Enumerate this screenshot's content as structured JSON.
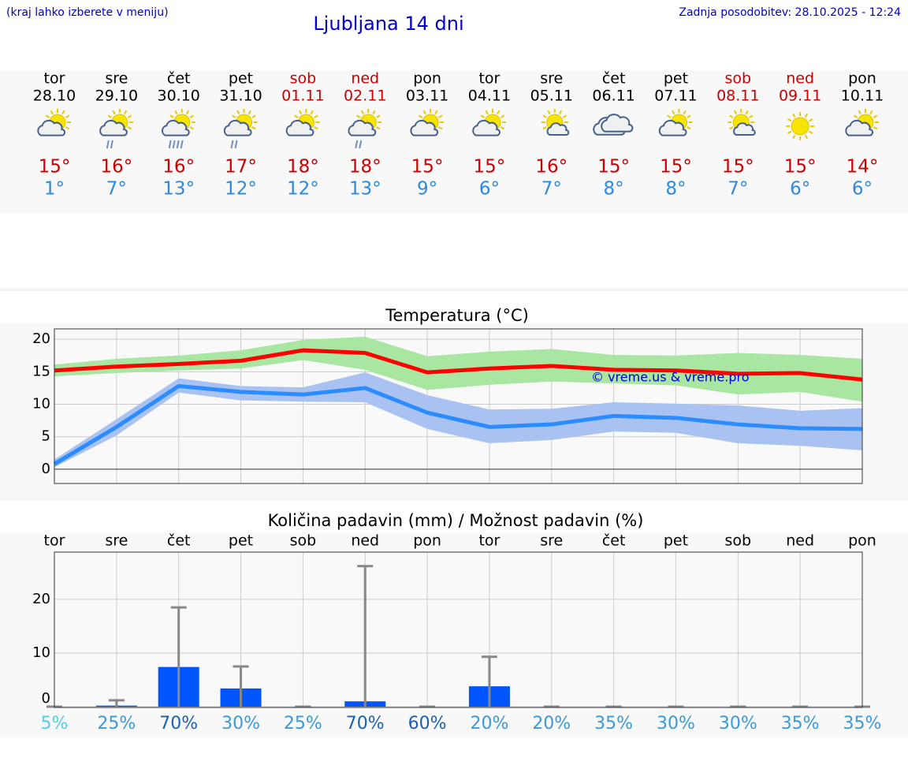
{
  "header": {
    "note": "(kraj lahko izberete v meniju)",
    "title": "Ljubljana 14 dni",
    "updated": "Zadnja posodobitev: 28.10.2025 - 12:24"
  },
  "days": [
    {
      "weekday": "tor",
      "date": "28.10",
      "high": "15°",
      "low": "1°",
      "weekend": false,
      "icon": "sun-cloud"
    },
    {
      "weekday": "sre",
      "date": "29.10",
      "high": "16°",
      "low": "7°",
      "weekend": false,
      "icon": "sun-cloud-rain"
    },
    {
      "weekday": "čet",
      "date": "30.10",
      "high": "16°",
      "low": "13°",
      "weekend": false,
      "icon": "sun-cloud-heavy-rain"
    },
    {
      "weekday": "pet",
      "date": "31.10",
      "high": "17°",
      "low": "12°",
      "weekend": false,
      "icon": "sun-cloud-rain"
    },
    {
      "weekday": "sob",
      "date": "01.11",
      "high": "18°",
      "low": "12°",
      "weekend": true,
      "icon": "sun-cloud"
    },
    {
      "weekday": "ned",
      "date": "02.11",
      "high": "18°",
      "low": "13°",
      "weekend": true,
      "icon": "sun-cloud-rain"
    },
    {
      "weekday": "pon",
      "date": "03.11",
      "high": "15°",
      "low": "9°",
      "weekend": false,
      "icon": "sun-cloud"
    },
    {
      "weekday": "tor",
      "date": "04.11",
      "high": "15°",
      "low": "6°",
      "weekend": false,
      "icon": "sun-cloud"
    },
    {
      "weekday": "sre",
      "date": "05.11",
      "high": "16°",
      "low": "7°",
      "weekend": false,
      "icon": "sun-small-cloud"
    },
    {
      "weekday": "čet",
      "date": "06.11",
      "high": "15°",
      "low": "8°",
      "weekend": false,
      "icon": "cloudy"
    },
    {
      "weekday": "pet",
      "date": "07.11",
      "high": "15°",
      "low": "8°",
      "weekend": false,
      "icon": "sun-cloud"
    },
    {
      "weekday": "sob",
      "date": "08.11",
      "high": "15°",
      "low": "7°",
      "weekend": true,
      "icon": "sun-small-cloud"
    },
    {
      "weekday": "ned",
      "date": "09.11",
      "high": "15°",
      "low": "6°",
      "weekend": true,
      "icon": "sun"
    },
    {
      "weekday": "pon",
      "date": "10.11",
      "high": "14°",
      "low": "6°",
      "weekend": false,
      "icon": "sun-cloud"
    }
  ],
  "chart_data": [
    {
      "type": "line",
      "title": "Temperatura (°C)",
      "annotation": "© vreme.us & vreme.pro",
      "ylim": [
        -2.2,
        21.6
      ],
      "yticks": [
        0,
        5,
        10,
        15,
        20
      ],
      "grid": true,
      "bands": [
        {
          "color": "#a8e6a2",
          "upper": [
            16.1,
            17.0,
            17.5,
            18.3,
            19.9,
            20.4,
            17.4,
            18.1,
            18.5,
            17.6,
            17.5,
            17.9,
            17.6,
            17.0
          ],
          "lower": [
            14.3,
            14.8,
            15.2,
            15.5,
            16.8,
            15.3,
            12.2,
            13.0,
            13.5,
            13.2,
            12.9,
            11.5,
            11.9,
            10.4
          ]
        },
        {
          "color": "#aac2f2",
          "upper": [
            1.5,
            7.7,
            14.0,
            12.8,
            12.6,
            14.9,
            11.4,
            9.2,
            9.3,
            10.3,
            10.1,
            9.8,
            9.0,
            9.4
          ],
          "lower": [
            0.3,
            5.2,
            11.8,
            10.6,
            10.4,
            10.3,
            6.2,
            4.0,
            4.5,
            5.8,
            5.6,
            4.0,
            3.6,
            2.9
          ]
        }
      ],
      "series": [
        {
          "color": "#ff0000",
          "values": [
            15.2,
            15.8,
            16.2,
            16.7,
            18.3,
            17.9,
            14.9,
            15.5,
            15.9,
            15.3,
            15.2,
            14.7,
            14.8,
            13.8
          ]
        },
        {
          "color": "#2a8cff",
          "values": [
            0.8,
            6.5,
            12.8,
            11.9,
            11.5,
            12.5,
            8.7,
            6.5,
            6.9,
            8.2,
            7.9,
            6.9,
            6.3,
            6.2
          ]
        }
      ]
    },
    {
      "type": "bar",
      "title": "Količina padavin (mm) / Možnost padavin (%)",
      "categories": [
        "tor",
        "sre",
        "čet",
        "pet",
        "sob",
        "ned",
        "pon",
        "tor",
        "sre",
        "čet",
        "pet",
        "sob",
        "ned",
        "pon"
      ],
      "values": [
        0,
        0.2,
        7.4,
        3.4,
        0,
        1.0,
        0,
        3.8,
        0,
        0,
        0,
        0,
        0,
        0
      ],
      "color": "#0055ff",
      "error": {
        "color": "#888888",
        "values": [
          0,
          1.2,
          18.5,
          7.5,
          0,
          26.2,
          0,
          9.3,
          0,
          0,
          0,
          0,
          0,
          0
        ]
      },
      "ylim": [
        0,
        28.8
      ],
      "yticks": [
        0,
        10,
        20
      ],
      "grid": true,
      "probability": {
        "values": [
          5,
          25,
          70,
          30,
          25,
          70,
          60,
          20,
          20,
          35,
          30,
          30,
          35,
          35
        ],
        "value_labels": [
          "5%",
          "25%",
          "70%",
          "30%",
          "25%",
          "70%",
          "60%",
          "20%",
          "20%",
          "35%",
          "30%",
          "30%",
          "35%",
          "35%"
        ],
        "colors": [
          "#4fd0e8",
          "#3a9ad9",
          "#1a5fb0",
          "#3a9ad9",
          "#3a9ad9",
          "#1a5fb0",
          "#1a5fb0",
          "#3a9ad9",
          "#3a9ad9",
          "#3a9ad9",
          "#3a9ad9",
          "#3a9ad9",
          "#3a9ad9",
          "#3a9ad9"
        ]
      }
    }
  ]
}
